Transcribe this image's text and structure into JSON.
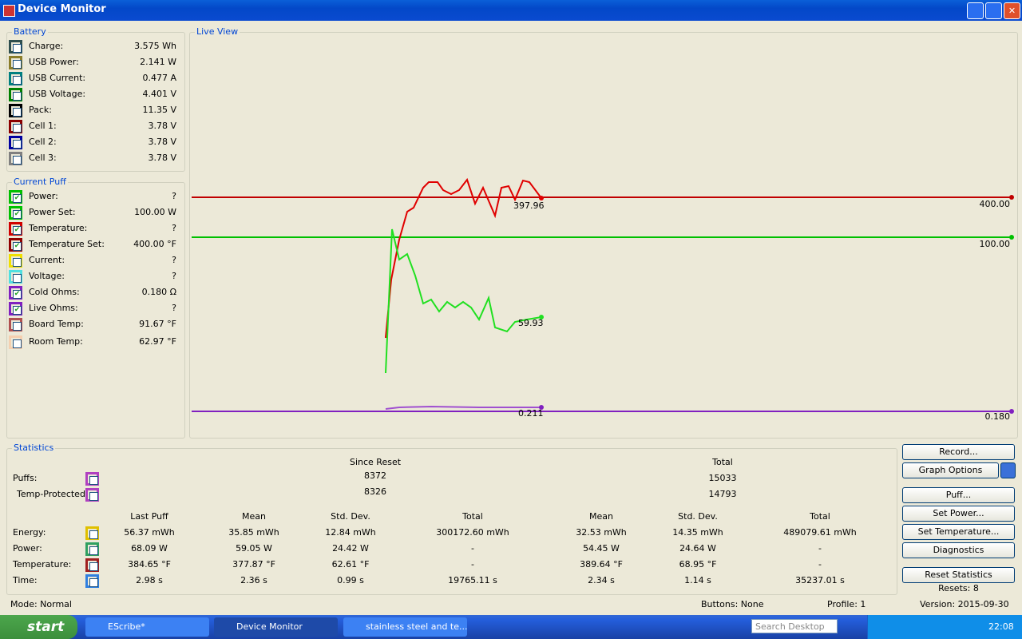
{
  "window": {
    "title": "Device Monitor"
  },
  "battery": {
    "title": "Battery",
    "rows": [
      {
        "label": "Charge:",
        "value": "3.575 Wh",
        "color": "#2f4f4f",
        "checked": false
      },
      {
        "label": "USB Power:",
        "value": "2.141 W",
        "color": "#8b7d2a",
        "checked": false
      },
      {
        "label": "USB Current:",
        "value": "0.477 A",
        "color": "#008080",
        "checked": false
      },
      {
        "label": "USB Voltage:",
        "value": "4.401 V",
        "color": "#008000",
        "checked": false
      },
      {
        "label": "Pack:",
        "value": "11.35 V",
        "color": "#000000",
        "checked": false
      },
      {
        "label": "Cell 1:",
        "value": "3.78 V",
        "color": "#8b0000",
        "checked": false
      },
      {
        "label": "Cell 2:",
        "value": "3.78 V",
        "color": "#0000a0",
        "checked": false
      },
      {
        "label": "Cell 3:",
        "value": "3.78 V",
        "color": "#808080",
        "checked": false
      }
    ]
  },
  "current_puff": {
    "title": "Current Puff",
    "rows": [
      {
        "label": "Power:",
        "value": "?",
        "color": "#00c000",
        "checked": true
      },
      {
        "label": "Power Set:",
        "value": "100.00 W",
        "color": "#00c000",
        "checked": true
      },
      {
        "label": "Temperature:",
        "value": "?",
        "color": "#d00000",
        "checked": true
      },
      {
        "label": "Temperature Set:",
        "value": "400.00 °F",
        "color": "#900000",
        "checked": true
      },
      {
        "label": "Current:",
        "value": "?",
        "color": "#f0e000",
        "checked": false
      },
      {
        "label": "Voltage:",
        "value": "?",
        "color": "#50e0e0",
        "checked": false
      },
      {
        "label": "Cold Ohms:",
        "value": "0.180 Ω",
        "color": "#8020c0",
        "checked": true
      },
      {
        "label": "Live Ohms:",
        "value": "?",
        "color": "#8020c0",
        "checked": true
      },
      {
        "label": "Board Temp:",
        "value": "91.67 °F",
        "color": "#b05050",
        "checked": false
      },
      {
        "label": "Room Temp:",
        "value": "62.97 °F",
        "color": "#f5d0b0",
        "checked": false
      }
    ]
  },
  "live_view": {
    "title": "Live View",
    "labels": [
      "397.96",
      "400.00",
      "100.00",
      "59.93",
      "0.211",
      "0.180"
    ]
  },
  "statistics": {
    "title": "Statistics",
    "since_reset": "Since Reset",
    "total": "Total",
    "count_rows": [
      {
        "label": "Puffs:",
        "color": "#b040c0",
        "since_reset": "8372",
        "total": "15033"
      },
      {
        "label": "Temp-Protected:",
        "color": "#b040c0",
        "since_reset": "8326",
        "total": "14793"
      }
    ],
    "columns": [
      "Last Puff",
      "Mean",
      "Std. Dev.",
      "Total",
      "Mean",
      "Std. Dev.",
      "Total"
    ],
    "rows": [
      {
        "label": "Energy:",
        "color": "#e0c000",
        "cells": [
          "56.37 mWh",
          "35.85 mWh",
          "12.84 mWh",
          "300172.60 mWh",
          "32.53 mWh",
          "14.35 mWh",
          "489079.61 mWh"
        ]
      },
      {
        "label": "Power:",
        "color": "#30a060",
        "cells": [
          "68.09 W",
          "59.05 W",
          "24.42 W",
          "-",
          "54.45 W",
          "24.64 W",
          "-"
        ]
      },
      {
        "label": "Temperature:",
        "color": "#a02020",
        "cells": [
          "384.65 °F",
          "377.87 °F",
          "62.61 °F",
          "-",
          "389.64 °F",
          "68.95 °F",
          "-"
        ]
      },
      {
        "label": "Time:",
        "color": "#3080e0",
        "cells": [
          "2.98 s",
          "2.36 s",
          "0.99 s",
          "19765.11 s",
          "2.34 s",
          "1.14 s",
          "35237.01 s"
        ]
      }
    ]
  },
  "buttons": [
    "Record...",
    "Graph Options",
    "Puff...",
    "Set Power...",
    "Set Temperature...",
    "Diagnostics",
    "Reset Statistics"
  ],
  "resets": "Resets: 8",
  "status": {
    "mode": "Mode: Normal",
    "buttons": "Buttons: None",
    "profile": "Profile: 1",
    "version": "Version: 2015-09-30"
  },
  "taskbar": {
    "start": "start",
    "items": [
      "EScribe*",
      "Device Monitor",
      "stainless steel and te..."
    ],
    "search": "Search Desktop",
    "clock": "22:08"
  }
}
